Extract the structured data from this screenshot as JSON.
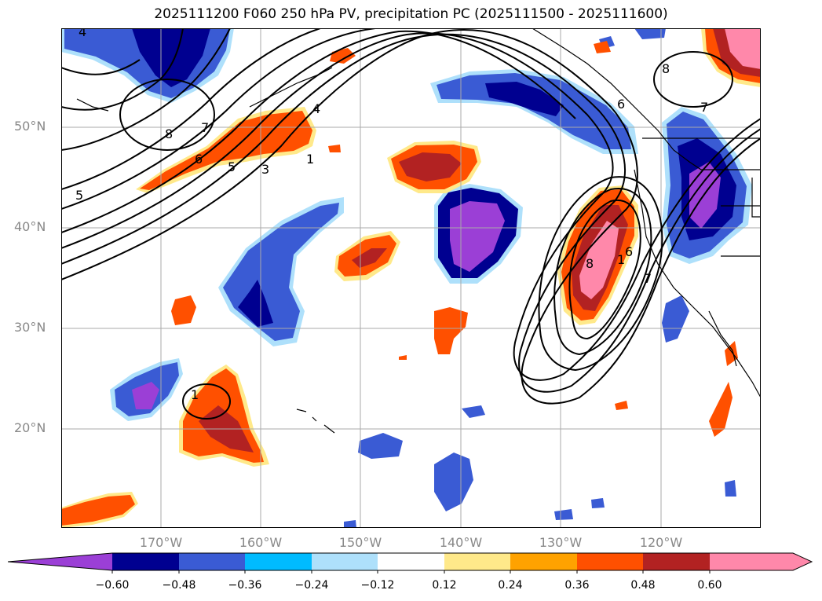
{
  "title": "2025111200 F060 250 hPa PV, precipitation PC (2025111500 - 2025111600)",
  "axes": {
    "lat_labels": [
      "50°N",
      "40°N",
      "30°N",
      "20°N"
    ],
    "lon_labels": [
      "170°W",
      "160°W",
      "150°W",
      "140°W",
      "130°W",
      "120°W"
    ]
  },
  "colorbar": {
    "tick_labels": [
      "−0.60",
      "−0.48",
      "−0.36",
      "−0.24",
      "−0.12",
      "0.12",
      "0.24",
      "0.36",
      "0.48",
      "0.60"
    ],
    "colors": [
      "#9b3fd6",
      "#000090",
      "#3a5bd4",
      "#00bbff",
      "#aee0fb",
      "#ffffff",
      "#ffe98a",
      "#ffa200",
      "#ff5000",
      "#b22222",
      "#ff88aa",
      "#ff88aa"
    ]
  },
  "contour_labels": [
    "4",
    "8",
    "7",
    "6",
    "5",
    "3",
    "1",
    "5",
    "4",
    "6",
    "8",
    "7",
    "8",
    "7",
    "6",
    "1",
    "1"
  ],
  "colors": {
    "negative_strong": "#9b3fd6",
    "negative": "#000090",
    "positive_strong": "#ff88aa",
    "positive": "#ff5000",
    "contour": "#000000",
    "grid": "#aaaaaa"
  }
}
